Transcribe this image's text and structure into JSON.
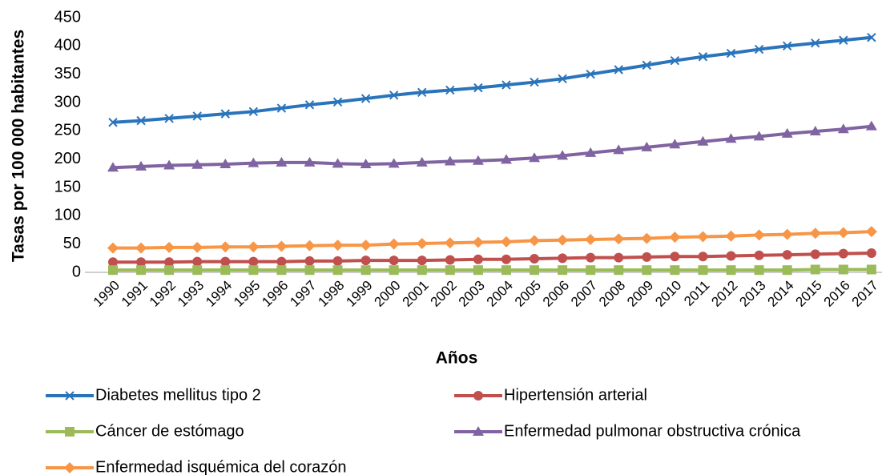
{
  "chart_data": {
    "type": "line",
    "y_label": "Tasas por 100 000 habitantes",
    "x_label": "Años",
    "categories": [
      "1990",
      "1991",
      "1992",
      "1993",
      "1994",
      "1995",
      "1996",
      "1997",
      "1998",
      "1999",
      "2000",
      "2001",
      "2002",
      "2003",
      "2004",
      "2005",
      "2006",
      "2007",
      "2008",
      "2009",
      "2010",
      "2011",
      "2012",
      "2013",
      "2014",
      "2015",
      "2016",
      "2017"
    ],
    "ylim": [
      0,
      450
    ],
    "yticks": [
      0,
      50,
      100,
      150,
      200,
      250,
      300,
      350,
      400,
      450
    ],
    "grid": false,
    "legend": "bottom",
    "series": [
      {
        "name": "Diabetes mellitus tipo 2",
        "color": "#2a74bb",
        "marker": "x",
        "values": [
          265,
          268,
          272,
          276,
          280,
          284,
          290,
          296,
          301,
          307,
          313,
          318,
          322,
          326,
          331,
          336,
          342,
          350,
          358,
          366,
          374,
          381,
          387,
          394,
          400,
          405,
          410,
          415
        ]
      },
      {
        "name": "Hipertensión arterial",
        "color": "#c0504d",
        "marker": "circle",
        "values": [
          18,
          18,
          18,
          19,
          19,
          19,
          19,
          20,
          20,
          21,
          21,
          21,
          22,
          23,
          23,
          24,
          25,
          26,
          26,
          27,
          28,
          28,
          29,
          30,
          31,
          32,
          33,
          34
        ]
      },
      {
        "name": "Cáncer de estómago",
        "color": "#9bbb59",
        "marker": "square",
        "values": [
          4,
          4,
          4,
          4,
          4,
          4,
          4,
          4,
          4,
          4,
          4,
          4,
          4,
          4,
          4,
          4,
          4,
          4,
          4,
          4,
          4,
          4,
          4,
          4,
          4,
          5,
          5,
          5
        ]
      },
      {
        "name": "Enfermedad pulmonar obstructiva crónica",
        "color": "#8064a2",
        "marker": "triangle",
        "values": [
          185,
          187,
          189,
          190,
          191,
          193,
          194,
          194,
          192,
          191,
          192,
          194,
          196,
          197,
          199,
          202,
          206,
          211,
          216,
          221,
          226,
          231,
          236,
          240,
          245,
          249,
          253,
          258
        ]
      },
      {
        "name": "Enfermedad isquémica del corazón",
        "color": "#f79646",
        "marker": "diamond",
        "values": [
          43,
          43,
          44,
          44,
          45,
          45,
          46,
          47,
          48,
          48,
          50,
          51,
          52,
          53,
          54,
          56,
          57,
          58,
          59,
          60,
          62,
          63,
          64,
          66,
          67,
          69,
          70,
          72
        ]
      }
    ]
  }
}
